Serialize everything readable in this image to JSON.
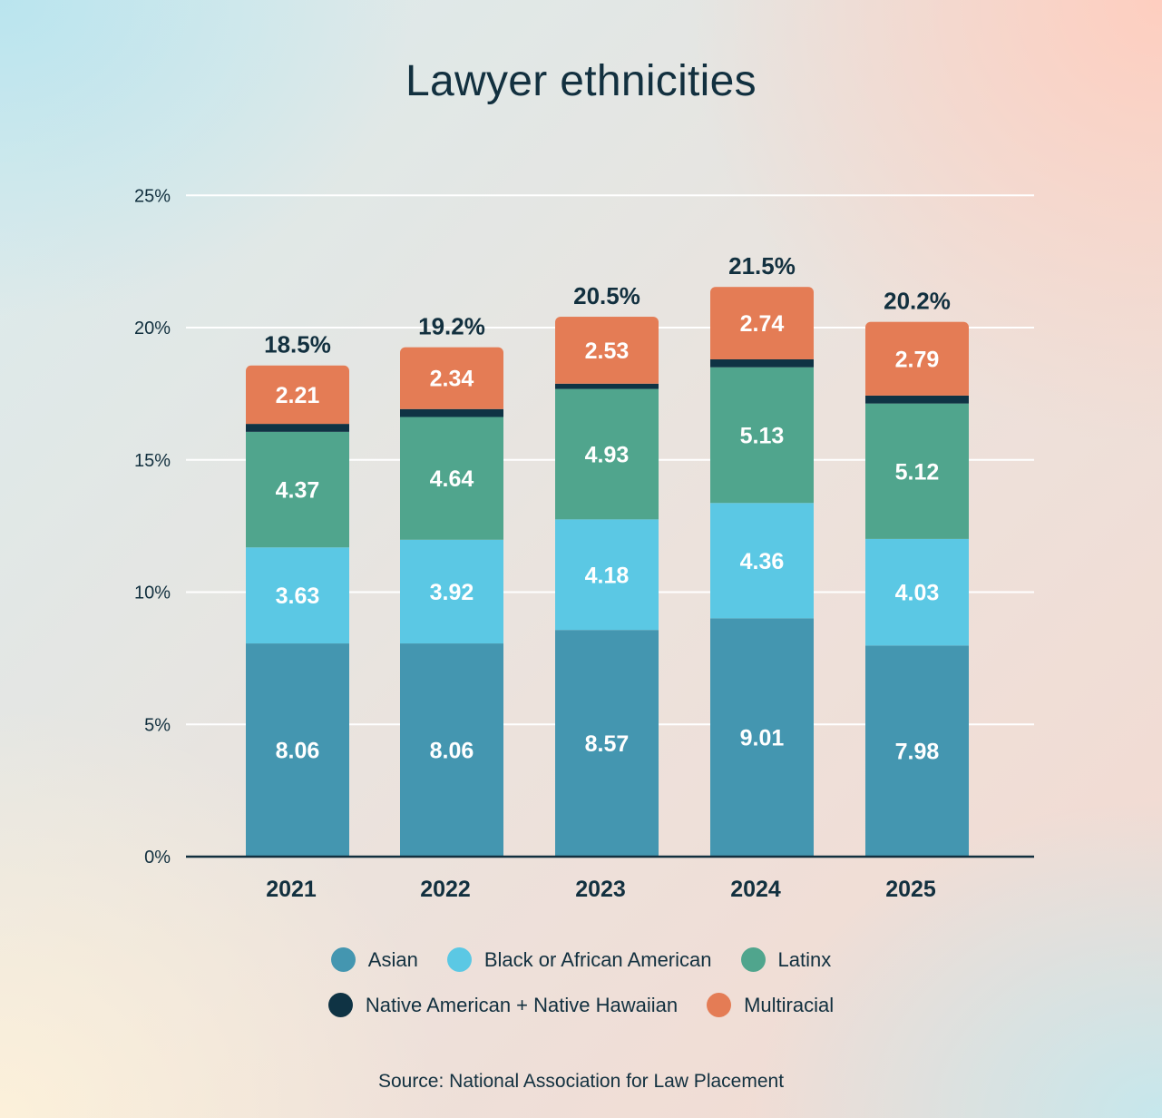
{
  "chart_data": {
    "type": "bar",
    "stacked": true,
    "title": "Lawyer ethnicities",
    "categories": [
      "2021",
      "2022",
      "2023",
      "2024",
      "2025"
    ],
    "series": [
      {
        "name": "Asian",
        "color": "#4496b0",
        "values": [
          8.06,
          8.06,
          8.57,
          9.01,
          7.98
        ],
        "labels": [
          "8.06",
          "8.06",
          "8.57",
          "9.01",
          "7.98"
        ]
      },
      {
        "name": "Black or African American",
        "color": "#5bc8e4",
        "values": [
          3.63,
          3.92,
          4.18,
          4.36,
          4.03
        ],
        "labels": [
          "3.63",
          "3.92",
          "4.18",
          "4.36",
          "4.03"
        ]
      },
      {
        "name": "Latinx",
        "color": "#50a58d",
        "values": [
          4.37,
          4.64,
          4.93,
          5.13,
          5.12
        ],
        "labels": [
          "4.37",
          "4.64",
          "4.93",
          "5.13",
          "5.12"
        ]
      },
      {
        "name": "Native American + Native Hawaiian",
        "color": "#0f3344",
        "values": [
          0.3,
          0.3,
          0.2,
          0.3,
          0.3
        ],
        "labels": [
          "",
          "",
          "",
          "",
          ""
        ]
      },
      {
        "name": "Multiracial",
        "color": "#e47c55",
        "values": [
          2.21,
          2.34,
          2.53,
          2.74,
          2.79
        ],
        "labels": [
          "2.21",
          "2.34",
          "2.53",
          "2.74",
          "2.79"
        ]
      }
    ],
    "totals": [
      18.5,
      19.2,
      20.5,
      21.5,
      20.2
    ],
    "total_labels": [
      "18.5%",
      "19.2%",
      "20.5%",
      "21.5%",
      "20.2%"
    ],
    "ylim": [
      0,
      25
    ],
    "yticks": [
      0,
      5,
      10,
      15,
      20,
      25
    ],
    "ytick_labels": [
      "0%",
      "5%",
      "10%",
      "15%",
      "20%",
      "25%"
    ],
    "grid": true,
    "legend_position": "bottom",
    "source": "Source:  National Association for Law Placement"
  }
}
